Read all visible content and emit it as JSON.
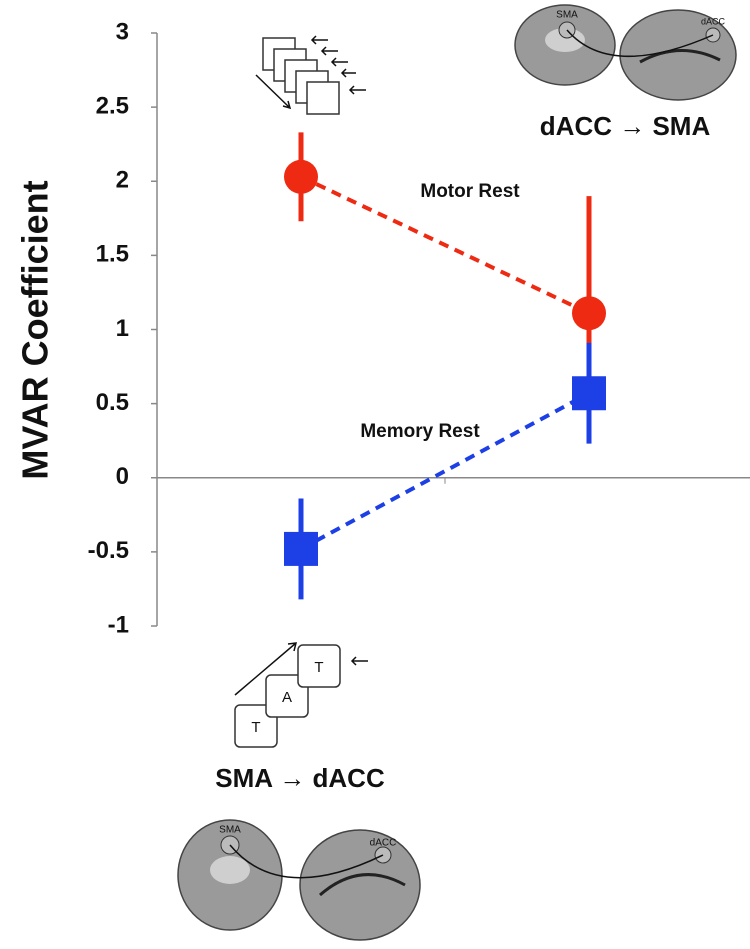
{
  "chart_data": {
    "type": "errorbar",
    "y_label": "MVAR Coefficient",
    "categories": [
      null,
      null
    ],
    "series": [
      {
        "name": "Motor Rest",
        "color": "#ee2a12",
        "marker": "circle",
        "values": [
          2.03,
          1.11
        ],
        "errors": [
          0.3,
          0.79
        ]
      },
      {
        "name": "Memory Rest",
        "color": "#1c3fe6",
        "marker": "square",
        "values": [
          -0.48,
          0.57
        ],
        "errors": [
          0.34,
          0.34
        ]
      }
    ],
    "ylim": [
      -1,
      3
    ],
    "yticks": [
      -1,
      -0.5,
      0,
      0.5,
      1,
      1.5,
      2,
      2.5,
      3
    ],
    "annotations": [
      "dACC → SMA",
      "SMA → dACC",
      "T",
      "A",
      "T",
      "SMA",
      "dACC",
      "SMA",
      "dACC"
    ]
  }
}
